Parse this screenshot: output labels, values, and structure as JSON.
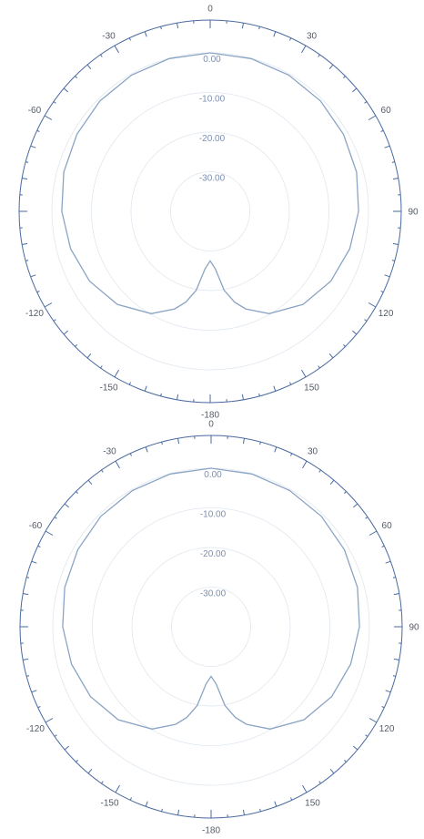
{
  "chart_data": [
    {
      "type": "polar-line",
      "angle_labels": [
        "0",
        "30",
        "60",
        "90",
        "120",
        "150",
        "-180",
        "-150",
        "-120",
        "",
        "-60",
        "-30"
      ],
      "angle_label_degrees": [
        0,
        30,
        60,
        90,
        120,
        150,
        180,
        -150,
        -120,
        -90,
        -60,
        -30
      ],
      "radial_tick_labels": [
        "0.00",
        "-10.00",
        "-20.00",
        "-30.00"
      ],
      "rlim": [
        -40,
        0
      ],
      "series": [
        {
          "angles_deg": [
            0,
            15,
            30,
            45,
            60,
            75,
            90,
            105,
            120,
            135,
            150,
            160,
            165,
            170,
            175,
            180,
            -175,
            -170,
            -165,
            -160,
            -150,
            -135,
            -120,
            -105,
            -90,
            -75,
            -60,
            -45,
            -30,
            -15
          ],
          "values_db": [
            0,
            -0.1,
            -0.3,
            -0.6,
            -1.1,
            -1.7,
            -2.5,
            -3.5,
            -4.8,
            -6.8,
            -10.2,
            -13.8,
            -16.3,
            -19.8,
            -25.5,
            -27.5,
            -25.5,
            -19.8,
            -16.3,
            -13.8,
            -10.2,
            -6.8,
            -4.8,
            -3.5,
            -2.5,
            -1.7,
            -1.1,
            -0.6,
            -0.3,
            -0.1
          ]
        }
      ]
    },
    {
      "type": "polar-line",
      "angle_labels": [
        "0",
        "30",
        "60",
        "90",
        "120",
        "150",
        "-180",
        "-150",
        "-120",
        "",
        "-60",
        "-30"
      ],
      "angle_label_degrees": [
        0,
        30,
        60,
        90,
        120,
        150,
        180,
        -150,
        -120,
        -90,
        -60,
        -30
      ],
      "radial_tick_labels": [
        "0.00",
        "-10.00",
        "-20.00",
        "-30.00"
      ],
      "rlim": [
        -40,
        0
      ],
      "series": [
        {
          "angles_deg": [
            0,
            15,
            30,
            45,
            60,
            75,
            90,
            105,
            120,
            135,
            150,
            160,
            165,
            170,
            175,
            180,
            -175,
            -170,
            -165,
            -160,
            -150,
            -135,
            -120,
            -105,
            -90,
            -75,
            -60,
            -45,
            -30,
            -15
          ],
          "values_db": [
            0,
            -0.1,
            -0.3,
            -0.6,
            -1.1,
            -1.7,
            -2.5,
            -3.5,
            -4.8,
            -6.8,
            -10.2,
            -13.8,
            -16.3,
            -19.8,
            -25.5,
            -27.5,
            -25.5,
            -19.8,
            -16.3,
            -13.8,
            -10.2,
            -6.8,
            -4.8,
            -3.5,
            -2.5,
            -1.7,
            -1.1,
            -0.6,
            -0.3,
            -0.1
          ]
        }
      ]
    }
  ]
}
